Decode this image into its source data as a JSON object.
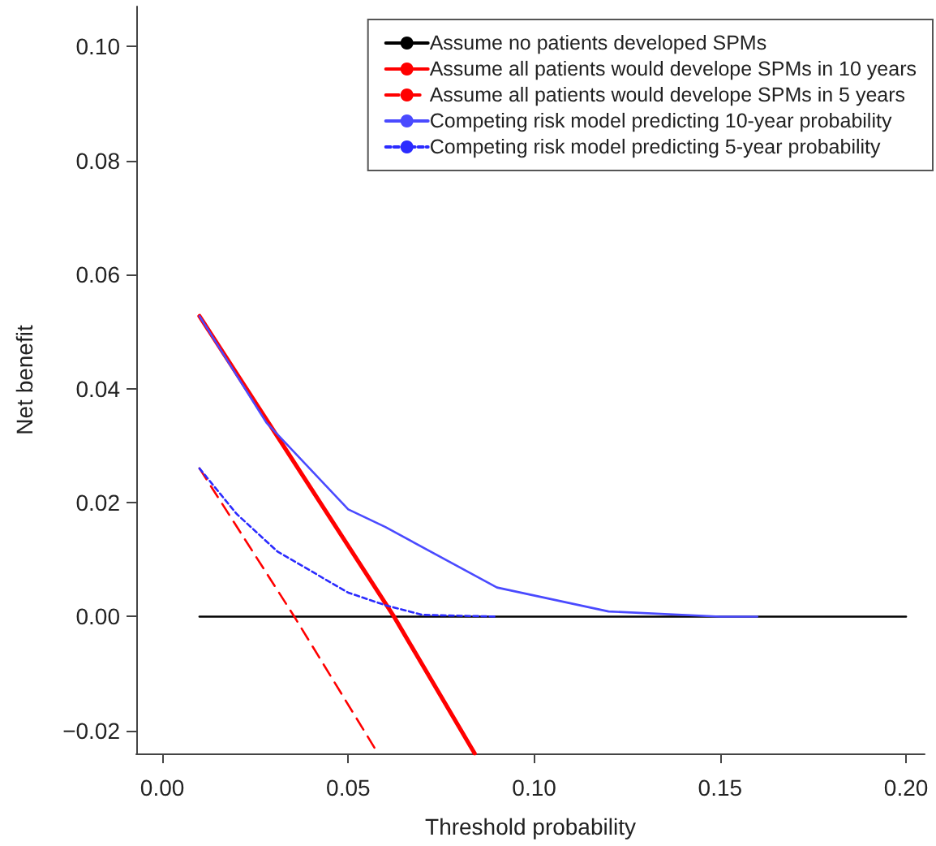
{
  "chart_data": {
    "type": "line",
    "xlabel": "Threshold probability",
    "ylabel": "Net benefit",
    "xlim": [
      -0.007,
      0.205
    ],
    "ylim": [
      -0.024,
      0.107
    ],
    "xticks": [
      {
        "value": 0,
        "label": "0.00"
      },
      {
        "value": 0.05,
        "label": "0.05"
      },
      {
        "value": 0.1,
        "label": "0.10"
      },
      {
        "value": 0.15,
        "label": "0.15"
      },
      {
        "value": 0.2,
        "label": "0.20"
      }
    ],
    "yticks": [
      {
        "value": -0.02,
        "label": "−0.02"
      },
      {
        "value": 0,
        "label": "0.00"
      },
      {
        "value": 0.02,
        "label": "0.02"
      },
      {
        "value": 0.04,
        "label": "0.04"
      },
      {
        "value": 0.06,
        "label": "0.06"
      },
      {
        "value": 0.08,
        "label": "0.08"
      },
      {
        "value": 0.1,
        "label": "0.10"
      }
    ],
    "grid": false,
    "legend": "top right",
    "marker": "none",
    "series": [
      {
        "name": "Assume no patients developed SPMs",
        "color": "#000000",
        "line_style": "solid",
        "x": [
          0.01,
          0.2
        ],
        "values": [
          0,
          0
        ]
      },
      {
        "name": "Assume all patients would develope SPMs in 10 years",
        "color": "#ff0000",
        "line_style": "solid",
        "x": [
          0.01,
          0.0623,
          0.084
        ],
        "values": [
          0.0527,
          0,
          -0.024
        ]
      },
      {
        "name": "Assume all patients would develope SPMs in 5 years",
        "color": "#ff0000",
        "line_style": "dashed",
        "x": [
          0.01,
          0.0355,
          0.058
        ],
        "values": [
          0.026,
          0,
          -0.024
        ]
      },
      {
        "name": "Competing risk model predicting 10-year probability",
        "color": "#4a4aff",
        "line_style": "solid",
        "x": [
          0.01,
          0.028,
          0.05,
          0.06,
          0.09,
          0.12,
          0.15,
          0.16
        ],
        "values": [
          0.0527,
          0.034,
          0.0188,
          0.0157,
          0.0051,
          0.0009,
          0,
          0
        ]
      },
      {
        "name": "Competing risk model predicting 5-year probability",
        "color": "#2b2bff",
        "line_style": "dotted",
        "x": [
          0.01,
          0.02,
          0.031,
          0.05,
          0.06,
          0.07,
          0.09
        ],
        "values": [
          0.026,
          0.018,
          0.0114,
          0.0042,
          0.002,
          0.0003,
          0
        ]
      }
    ]
  }
}
